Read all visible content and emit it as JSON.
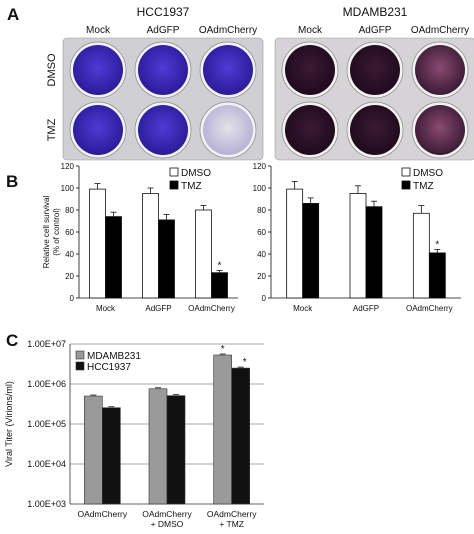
{
  "panels": {
    "A": {
      "letter": "A",
      "plates": [
        {
          "cell_line": "HCC1937",
          "col_labels": [
            "Mock",
            "AdGFP",
            "OAdmCherry"
          ],
          "row_labels": [
            "DMSO",
            "TMZ"
          ],
          "colors": {
            "stain": "#4f3bd3",
            "edge": "#2c1a9a",
            "tray": "#cfcfd4"
          }
        },
        {
          "cell_line": "MDAMB231",
          "col_labels": [
            "Mock",
            "AdGFP",
            "OAdmCherry"
          ],
          "row_labels": [
            "DMSO",
            "TMZ"
          ],
          "colors": {
            "stain": "#3a1a33",
            "edge": "#200a1c",
            "tray": "#d6d3d6"
          }
        }
      ]
    },
    "B": {
      "letter": "B"
    },
    "C": {
      "letter": "C"
    }
  },
  "chart_data": [
    {
      "type": "bar",
      "panel": "B-left",
      "ylabel": "Relative  cell survival\n(% of control)",
      "categories": [
        "Mock",
        "AdGFP",
        "OAdmCherry"
      ],
      "ylim": [
        0,
        120
      ],
      "yticks": [
        0,
        20,
        40,
        60,
        80,
        100,
        120
      ],
      "series": [
        {
          "name": "DMSO",
          "values": [
            99,
            95,
            80
          ],
          "errors": [
            5,
            5,
            4
          ],
          "color": "#ffffff"
        },
        {
          "name": "TMZ",
          "values": [
            74,
            71,
            23
          ],
          "errors": [
            4,
            5,
            2
          ],
          "color": "#000000"
        }
      ],
      "annotations": [
        {
          "category": "OAdmCherry",
          "series": "TMZ",
          "text": "*"
        }
      ],
      "legend": "top-right"
    },
    {
      "type": "bar",
      "panel": "B-right",
      "categories": [
        "Mock",
        "AdGFP",
        "OAdmCherry"
      ],
      "ylim": [
        0,
        120
      ],
      "yticks": [
        0,
        20,
        40,
        60,
        80,
        100,
        120
      ],
      "series": [
        {
          "name": "DMSO",
          "values": [
            99,
            95,
            77
          ],
          "errors": [
            7,
            7,
            7
          ],
          "color": "#ffffff"
        },
        {
          "name": "TMZ",
          "values": [
            86,
            83,
            41
          ],
          "errors": [
            5,
            5,
            3
          ],
          "color": "#000000"
        }
      ],
      "annotations": [
        {
          "category": "OAdmCherry",
          "series": "TMZ",
          "text": "*"
        }
      ],
      "legend": "top-right"
    },
    {
      "type": "bar",
      "panel": "C",
      "ylabel": "Viral Titer (Virions/ml)",
      "scale": "log",
      "categories": [
        "OAdmCherry",
        "OAdmCherry\n+ DMSO",
        "OAdmCherry\n+ TMZ"
      ],
      "ylim": [
        1000,
        10000000
      ],
      "yticks": [
        1000,
        10000,
        100000,
        1000000,
        10000000
      ],
      "ytick_labels": [
        "1.00E+03",
        "1.00E+04",
        "1.00E+05",
        "1.00E+06",
        "1.00E+07"
      ],
      "grid": true,
      "series": [
        {
          "name": "MDAMB231",
          "values": [
            500000,
            760000,
            5300000
          ],
          "color": "#9a9a9a"
        },
        {
          "name": "HCC1937",
          "values": [
            255000,
            510000,
            2500000
          ],
          "color": "#111111"
        }
      ],
      "annotations": [
        {
          "category": "OAdmCherry\n+ TMZ",
          "series": "MDAMB231",
          "text": "*"
        },
        {
          "category": "OAdmCherry\n+ TMZ",
          "series": "HCC1937",
          "text": "*"
        }
      ],
      "legend": "top-left"
    }
  ]
}
